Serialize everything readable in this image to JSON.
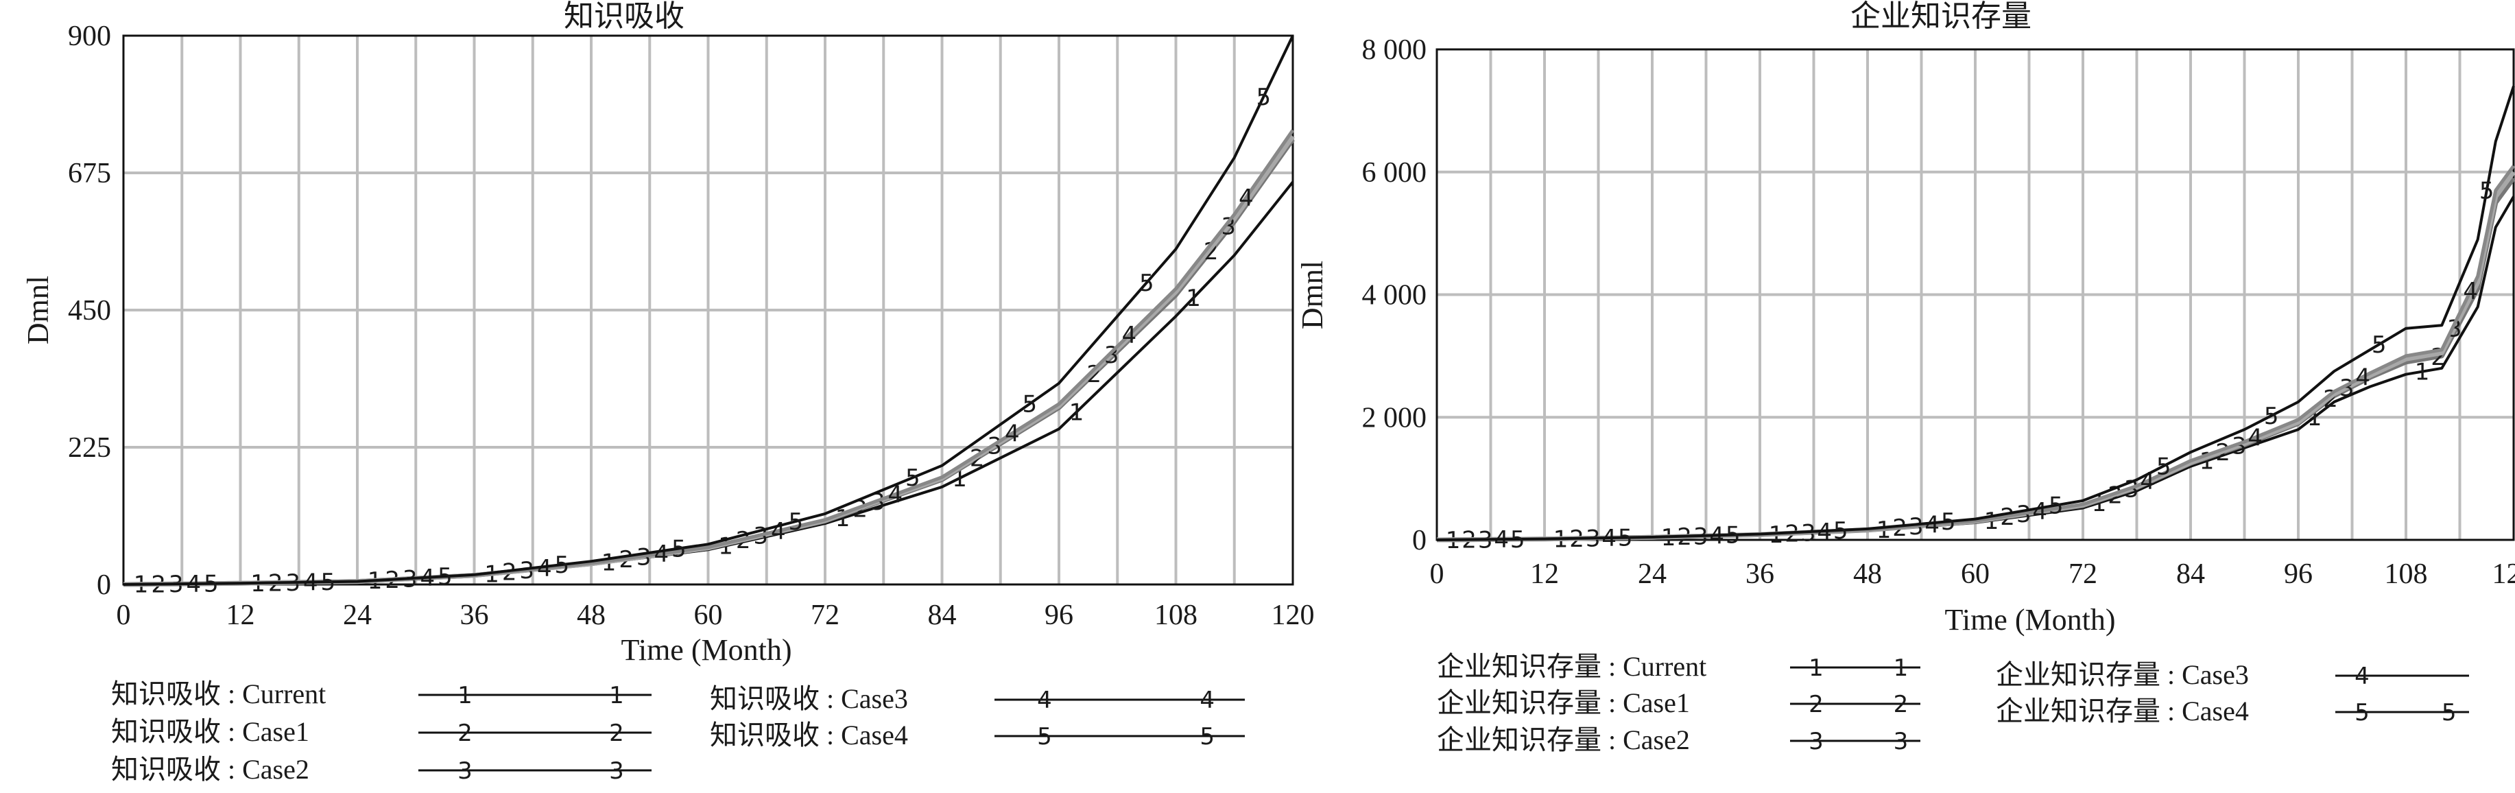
{
  "chart_data": [
    {
      "type": "line",
      "title": "知识吸收",
      "xlabel": "Time (Month)",
      "ylabel": "Dmnl",
      "xlim": [
        0,
        120
      ],
      "ylim": [
        0,
        900
      ],
      "x_ticks": [
        "0",
        "12",
        "24",
        "36",
        "48",
        "60",
        "72",
        "84",
        "96",
        "108",
        "120"
      ],
      "y_ticks": [
        "0",
        "225",
        "450",
        "675",
        "900"
      ],
      "x": [
        0,
        12,
        24,
        36,
        48,
        60,
        72,
        84,
        96,
        108,
        114,
        120
      ],
      "series": [
        {
          "name": "知识吸收 : Current",
          "marker": "1",
          "color": "#111111",
          "values": [
            0,
            2,
            5,
            15,
            33,
            57,
            100,
            160,
            255,
            440,
            540,
            660
          ]
        },
        {
          "name": "知识吸收 : Case1",
          "marker": "2",
          "color": "#777777",
          "values": [
            0,
            2,
            5,
            15,
            34,
            60,
            104,
            172,
            290,
            475,
            595,
            730
          ]
        },
        {
          "name": "知识吸收 : Case2",
          "marker": "3",
          "color": "#a8a8a8",
          "values": [
            0,
            2,
            5,
            15,
            34,
            60,
            105,
            174,
            293,
            480,
            600,
            735
          ]
        },
        {
          "name": "知识吸收 : Case3",
          "marker": "4",
          "color": "#888888",
          "values": [
            0,
            2,
            5,
            15,
            35,
            61,
            106,
            176,
            296,
            485,
            607,
            745
          ]
        },
        {
          "name": "知识吸收 : Case4",
          "marker": "5",
          "color": "#111111",
          "values": [
            0,
            2,
            5,
            16,
            38,
            66,
            116,
            195,
            330,
            550,
            700,
            900
          ]
        }
      ],
      "legend_position": "bottom"
    },
    {
      "type": "line",
      "title": "企业知识存量",
      "xlabel": "Time (Month)",
      "ylabel": "Dmnl",
      "xlim": [
        0,
        120
      ],
      "ylim": [
        0,
        8000
      ],
      "x_ticks": [
        "0",
        "12",
        "24",
        "36",
        "48",
        "60",
        "72",
        "84",
        "96",
        "108",
        "120"
      ],
      "y_ticks": [
        "0",
        "2 000",
        "4 000",
        "6 000",
        "8 000"
      ],
      "x": [
        0,
        12,
        24,
        36,
        48,
        60,
        72,
        78,
        84,
        90,
        96,
        100,
        104,
        108,
        112,
        116,
        118,
        120
      ],
      "series": [
        {
          "name": "企业知识存量 : Current",
          "marker": "1",
          "color": "#111111",
          "values": [
            0,
            15,
            40,
            80,
            150,
            280,
            520,
            800,
            1200,
            1500,
            1800,
            2250,
            2500,
            2700,
            2800,
            3800,
            5100,
            5600
          ]
        },
        {
          "name": "企业知识存量 : Case1",
          "marker": "2",
          "color": "#777777",
          "values": [
            0,
            15,
            42,
            85,
            160,
            300,
            560,
            850,
            1250,
            1550,
            1900,
            2350,
            2650,
            2900,
            3000,
            4100,
            5500,
            5900
          ]
        },
        {
          "name": "企业知识存量 : Case2",
          "marker": "3",
          "color": "#a8a8a8",
          "values": [
            0,
            15,
            42,
            86,
            162,
            305,
            570,
            860,
            1260,
            1570,
            1920,
            2380,
            2680,
            2950,
            3050,
            4200,
            5600,
            6000
          ]
        },
        {
          "name": "企业知识存量 : Case3",
          "marker": "4",
          "color": "#888888",
          "values": [
            0,
            15,
            43,
            88,
            165,
            310,
            580,
            880,
            1290,
            1600,
            1960,
            2420,
            2720,
            3000,
            3100,
            4300,
            5700,
            6100
          ]
        },
        {
          "name": "企业知识存量 : Case4",
          "marker": "5",
          "color": "#111111",
          "values": [
            0,
            16,
            45,
            95,
            180,
            340,
            640,
            980,
            1430,
            1800,
            2250,
            2750,
            3100,
            3450,
            3500,
            4900,
            6500,
            7400
          ]
        }
      ],
      "legend_position": "bottom"
    }
  ]
}
